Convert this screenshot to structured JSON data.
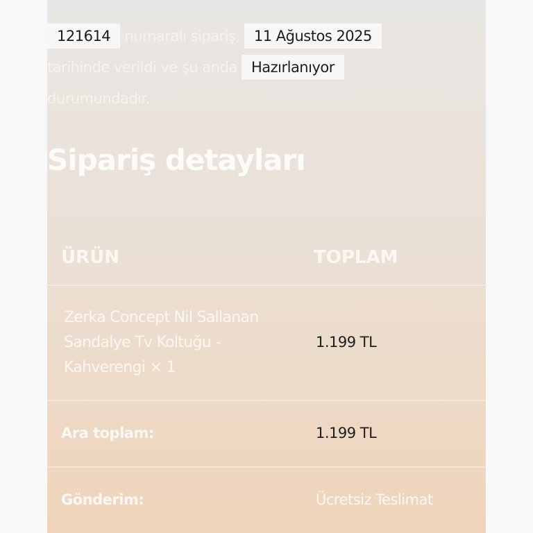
{
  "intro": {
    "order_number": "121614",
    "text1": "numaralı sipariş,",
    "date": "11 Ağustos 2025",
    "text2": "tarihinde verildi ve şu anda",
    "status": "Hazırlanıyor",
    "text3": "durumundadır."
  },
  "section_title": "Sipariş detayları",
  "table": {
    "headers": [
      "ÜRÜN",
      "TOPLAM"
    ],
    "item": {
      "name": "Zerka Concept Nil Sallanan Sandalye Tv Koltuğu - Kahverengi",
      "qty": "× 1",
      "total": "1.199 TL"
    },
    "subtotal": {
      "label": "Ara toplam:",
      "value": "1.199 TL"
    },
    "shipping": {
      "label": "Gönderim:",
      "value": "Ücretsiz Teslimat"
    }
  },
  "colors": {
    "panel_top": "#e8e6e4",
    "panel_bottom": "#efd4ba",
    "badge": "#f8f7f6"
  }
}
